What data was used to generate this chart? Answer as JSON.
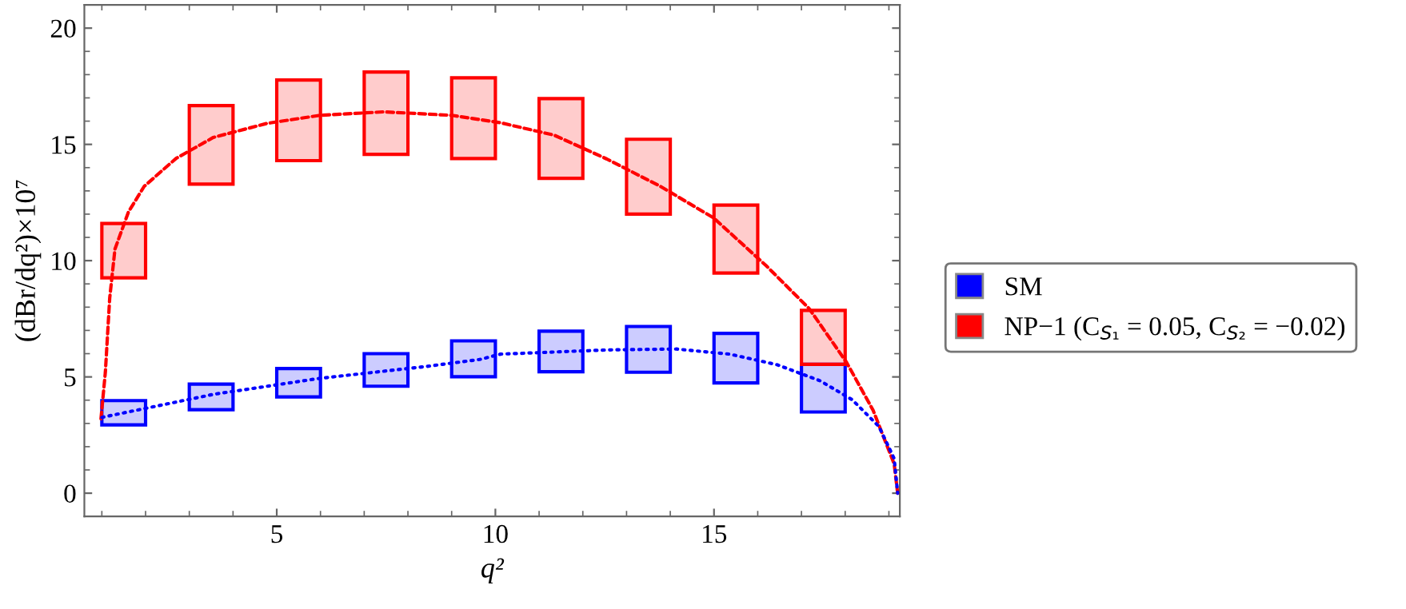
{
  "chart_data": {
    "type": "bar",
    "xlabel": "q²",
    "ylabel": "(dBr/dq²)×10⁷",
    "xlim": [
      0.6,
      19.25
    ],
    "ylim": [
      -1,
      21
    ],
    "xticks": [
      5,
      10,
      15
    ],
    "yticks": [
      0,
      5,
      10,
      15,
      20
    ],
    "grid": false,
    "legend": "right",
    "series": [
      {
        "name": "SM",
        "color": "#0000ff",
        "x": [
          1.5,
          3.5,
          5.5,
          7.5,
          9.5,
          11.5,
          13.5,
          15.5,
          17.5
        ],
        "base": [
          2.94,
          3.59,
          4.14,
          4.6,
          5.01,
          5.22,
          5.2,
          4.74,
          3.49
        ],
        "values": [
          1.04,
          1.1,
          1.22,
          1.4,
          1.54,
          1.75,
          1.97,
          2.13,
          2.05
        ]
      },
      {
        "name": "NP−1 (C$_{S₁}$ = 0.05, C$_{S₂}$ = −0.02)",
        "color": "#ff0000",
        "x": [
          1.5,
          3.5,
          5.5,
          7.5,
          9.5,
          11.5,
          13.5,
          15.5,
          17.5
        ],
        "base": [
          9.26,
          13.29,
          14.3,
          14.57,
          14.39,
          13.54,
          12.0,
          9.47,
          5.54
        ],
        "values": [
          2.34,
          3.38,
          3.47,
          3.54,
          3.47,
          3.43,
          3.22,
          2.92,
          2.32
        ]
      },
      {
        "type": "line",
        "color": "#0000ff",
        "line_style": "dotted",
        "x": [
          1.0,
          3.55,
          5.99,
          8.42,
          9.64,
          10.12,
          12.55,
          14.14,
          15.36,
          16.45,
          17.43,
          18.16,
          18.77,
          19.12,
          19.2
        ],
        "values": [
          3.26,
          4.25,
          4.94,
          5.45,
          5.75,
          5.98,
          6.16,
          6.2,
          5.98,
          5.52,
          4.83,
          4.02,
          2.87,
          1.49,
          0
        ]
      },
      {
        "type": "line",
        "color": "#ff0000",
        "line_style": "dashed",
        "x": [
          0.98,
          1.08,
          1.18,
          1.3,
          1.61,
          1.97,
          2.7,
          3.55,
          4.77,
          5.99,
          7.45,
          9.0,
          10.12,
          11.34,
          12.55,
          13.77,
          14.99,
          16.2,
          17.18,
          18.03,
          18.64,
          19.12,
          19.2
        ],
        "values": [
          3.2,
          5.2,
          8.4,
          10.5,
          12.1,
          13.2,
          14.4,
          15.3,
          15.9,
          16.25,
          16.4,
          16.25,
          15.93,
          15.4,
          14.37,
          13.2,
          11.84,
          9.77,
          7.93,
          5.63,
          3.56,
          1.26,
          0
        ]
      }
    ]
  }
}
